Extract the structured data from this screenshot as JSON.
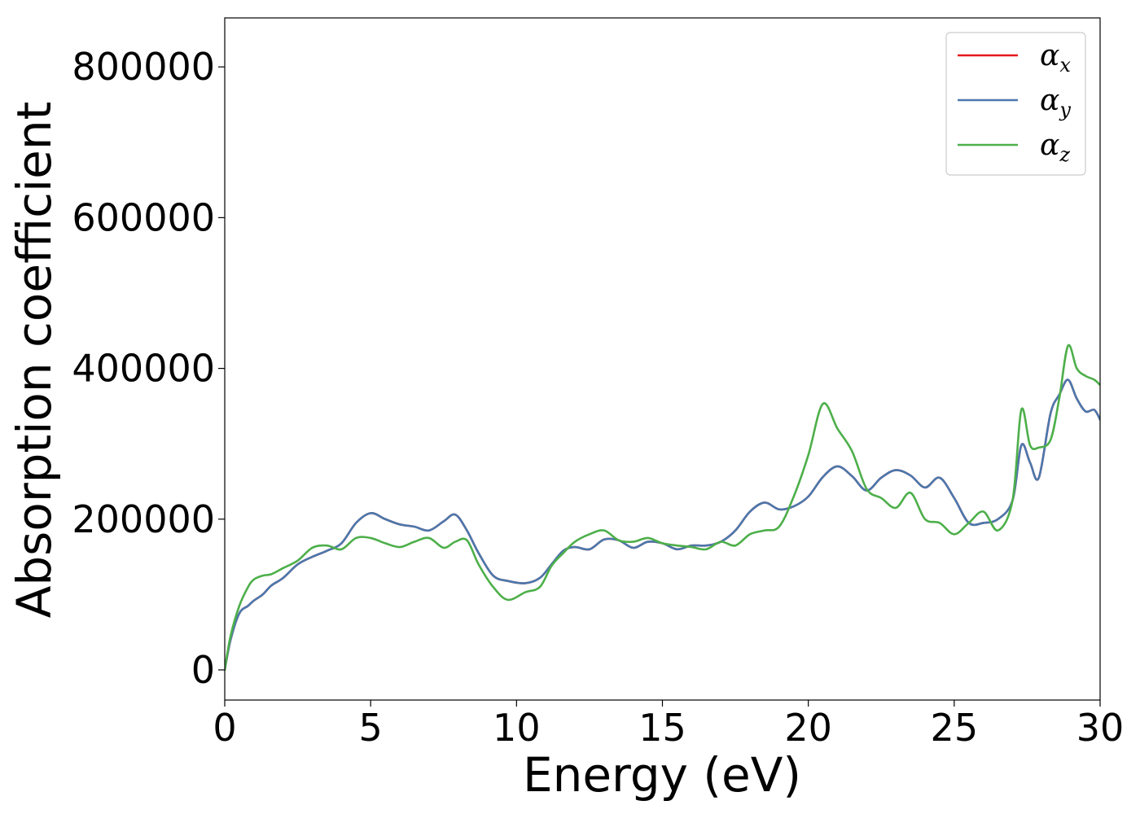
{
  "chart_data": {
    "type": "line",
    "xlabel": "Energy (eV)",
    "ylabel": "Absorption coefficient",
    "xlim": [
      0,
      30
    ],
    "ylim": [
      -40000,
      865000
    ],
    "xticks": [
      0,
      5,
      10,
      15,
      20,
      25,
      30
    ],
    "xtick_labels": [
      "0",
      "5",
      "10",
      "15",
      "20",
      "25",
      "30"
    ],
    "yticks": [
      0,
      200000,
      400000,
      600000,
      800000
    ],
    "ytick_labels": [
      "0",
      "200000",
      "400000",
      "600000",
      "800000"
    ],
    "grid": false,
    "legend": {
      "placement": "top-right",
      "entries": [
        {
          "symbol": "α",
          "sub": "x",
          "color": "#e41a1c"
        },
        {
          "symbol": "α",
          "sub": "y",
          "color": "#4a78ad"
        },
        {
          "symbol": "α",
          "sub": "z",
          "color": "#4daf4a"
        }
      ]
    },
    "series": [
      {
        "name": "αx",
        "color": "#e41a1c",
        "x": [
          0,
          0.2,
          0.5,
          0.8,
          1.0,
          1.3,
          1.6,
          2.0,
          2.5,
          3.0,
          3.5,
          4.0,
          4.5,
          5.0,
          5.5,
          6.0,
          6.5,
          7.0,
          7.5,
          7.9,
          8.3,
          8.7,
          9.2,
          9.7,
          10.3,
          10.8,
          11.2,
          11.6,
          12.0,
          12.5,
          13.0,
          13.5,
          14.0,
          14.5,
          15.0,
          15.5,
          16.0,
          16.5,
          17.0,
          17.5,
          18.0,
          18.5,
          19.0,
          19.5,
          20.0,
          20.5,
          21.0,
          21.5,
          22.0,
          22.5,
          23.0,
          23.5,
          24.0,
          24.5,
          25.0,
          25.5,
          26.0,
          26.5,
          27.0,
          27.3,
          27.6,
          27.9,
          28.3,
          28.6,
          28.9,
          29.2,
          29.5,
          29.8,
          30.0
        ],
        "values": [
          0,
          40000,
          75000,
          85000,
          92000,
          100000,
          112000,
          122000,
          140000,
          150000,
          158000,
          168000,
          195000,
          208000,
          200000,
          193000,
          190000,
          185000,
          197000,
          206000,
          185000,
          155000,
          125000,
          118000,
          115000,
          122000,
          140000,
          158000,
          163000,
          160000,
          173000,
          172000,
          162000,
          170000,
          168000,
          160000,
          165000,
          165000,
          170000,
          185000,
          210000,
          222000,
          213000,
          217000,
          230000,
          256000,
          270000,
          257000,
          238000,
          255000,
          265000,
          258000,
          242000,
          255000,
          228000,
          195000,
          195000,
          200000,
          225000,
          298000,
          275000,
          255000,
          340000,
          365000,
          385000,
          360000,
          343000,
          345000,
          332000
        ]
      },
      {
        "name": "αy",
        "color": "#4a78ad",
        "x": [
          0,
          0.2,
          0.5,
          0.8,
          1.0,
          1.3,
          1.6,
          2.0,
          2.5,
          3.0,
          3.5,
          4.0,
          4.5,
          5.0,
          5.5,
          6.0,
          6.5,
          7.0,
          7.5,
          7.9,
          8.3,
          8.7,
          9.2,
          9.7,
          10.3,
          10.8,
          11.2,
          11.6,
          12.0,
          12.5,
          13.0,
          13.5,
          14.0,
          14.5,
          15.0,
          15.5,
          16.0,
          16.5,
          17.0,
          17.5,
          18.0,
          18.5,
          19.0,
          19.5,
          20.0,
          20.5,
          21.0,
          21.5,
          22.0,
          22.5,
          23.0,
          23.5,
          24.0,
          24.5,
          25.0,
          25.5,
          26.0,
          26.5,
          27.0,
          27.3,
          27.6,
          27.9,
          28.3,
          28.6,
          28.9,
          29.2,
          29.5,
          29.8,
          30.0
        ],
        "values": [
          0,
          40000,
          75000,
          85000,
          92000,
          100000,
          112000,
          122000,
          140000,
          150000,
          158000,
          168000,
          195000,
          208000,
          200000,
          193000,
          190000,
          185000,
          197000,
          206000,
          185000,
          155000,
          125000,
          118000,
          115000,
          122000,
          140000,
          158000,
          163000,
          160000,
          173000,
          172000,
          162000,
          170000,
          168000,
          160000,
          165000,
          165000,
          170000,
          185000,
          210000,
          222000,
          213000,
          217000,
          230000,
          256000,
          270000,
          257000,
          238000,
          255000,
          265000,
          258000,
          242000,
          255000,
          228000,
          195000,
          195000,
          200000,
          225000,
          298000,
          275000,
          255000,
          340000,
          365000,
          385000,
          360000,
          343000,
          345000,
          332000
        ]
      },
      {
        "name": "αz",
        "color": "#4daf4a",
        "x": [
          0,
          0.2,
          0.5,
          0.8,
          1.0,
          1.3,
          1.6,
          2.0,
          2.5,
          3.0,
          3.5,
          4.0,
          4.5,
          5.0,
          5.5,
          6.0,
          6.5,
          7.0,
          7.5,
          7.9,
          8.3,
          8.7,
          9.2,
          9.7,
          10.3,
          10.8,
          11.2,
          11.6,
          12.0,
          12.5,
          13.0,
          13.5,
          14.0,
          14.5,
          15.0,
          15.5,
          16.0,
          16.5,
          17.0,
          17.5,
          18.0,
          18.5,
          19.0,
          19.5,
          20.0,
          20.5,
          21.0,
          21.5,
          22.0,
          22.5,
          23.0,
          23.5,
          24.0,
          24.5,
          25.0,
          25.5,
          26.0,
          26.5,
          27.0,
          27.3,
          27.6,
          27.9,
          28.3,
          28.6,
          28.9,
          29.2,
          29.5,
          29.8,
          30.0
        ],
        "values": [
          0,
          45000,
          85000,
          110000,
          120000,
          125000,
          127000,
          135000,
          145000,
          162000,
          165000,
          160000,
          175000,
          175000,
          168000,
          163000,
          170000,
          175000,
          162000,
          170000,
          172000,
          140000,
          110000,
          93000,
          103000,
          110000,
          138000,
          155000,
          170000,
          180000,
          185000,
          172000,
          170000,
          175000,
          168000,
          165000,
          163000,
          160000,
          170000,
          165000,
          180000,
          185000,
          190000,
          230000,
          285000,
          353000,
          320000,
          290000,
          240000,
          228000,
          215000,
          235000,
          200000,
          195000,
          180000,
          195000,
          210000,
          185000,
          225000,
          345000,
          298000,
          295000,
          305000,
          360000,
          430000,
          400000,
          390000,
          385000,
          378000
        ]
      }
    ]
  }
}
